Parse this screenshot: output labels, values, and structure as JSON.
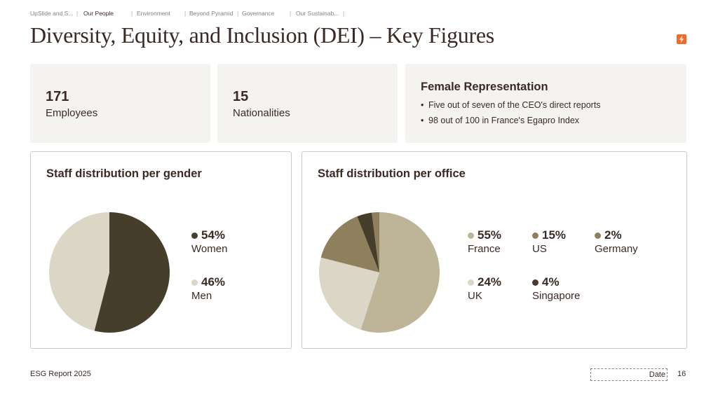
{
  "nav": {
    "items": [
      "UpSlide and S...",
      "Our People",
      "Environment",
      "Beyond Pyramid",
      "Governance",
      "Our Sustainab..."
    ],
    "active": "Our People"
  },
  "title": "Diversity, Equity, and Inclusion (DEI) – Key Figures",
  "brand_icon": "lightning-bolt-icon",
  "colors": {
    "dark": "#463d2b",
    "light": "#dcd6c6",
    "tan": "#beb598",
    "olive": "#8e7f5d",
    "accent": "#f06a29",
    "text": "#3b2a24",
    "card": "#f4f3f0"
  },
  "kpis": [
    {
      "value": "171",
      "label": "Employees"
    },
    {
      "value": "15",
      "label": "Nationalities"
    }
  ],
  "female_representation": {
    "title": "Female Representation",
    "bullets": [
      "Five out of seven of the CEO's direct reports",
      "98 out of 100 in France's Egapro Index"
    ]
  },
  "gender_panel": {
    "title": "Staff distribution per gender"
  },
  "office_panel": {
    "title": "Staff distribution per office"
  },
  "chart_data": [
    {
      "type": "pie",
      "title": "Staff distribution per gender",
      "series": [
        {
          "name": "Women",
          "value": 54,
          "label": "54%",
          "color": "#463d2b"
        },
        {
          "name": "Men",
          "value": 46,
          "label": "46%",
          "color": "#dcd6c6"
        }
      ]
    },
    {
      "type": "pie",
      "title": "Staff distribution per office",
      "series": [
        {
          "name": "France",
          "value": 55,
          "label": "55%",
          "color": "#beb598"
        },
        {
          "name": "UK",
          "value": 24,
          "label": "24%",
          "color": "#dcd6c6"
        },
        {
          "name": "US",
          "value": 15,
          "label": "15%",
          "color": "#8e7f5d"
        },
        {
          "name": "Singapore",
          "value": 4,
          "label": "4%",
          "color": "#463d2b"
        },
        {
          "name": "Germany",
          "value": 2,
          "label": "2%",
          "color": "#8e7f5d"
        }
      ]
    }
  ],
  "footer": {
    "left": "ESG Report 2025",
    "date": "Date",
    "page": "16"
  }
}
